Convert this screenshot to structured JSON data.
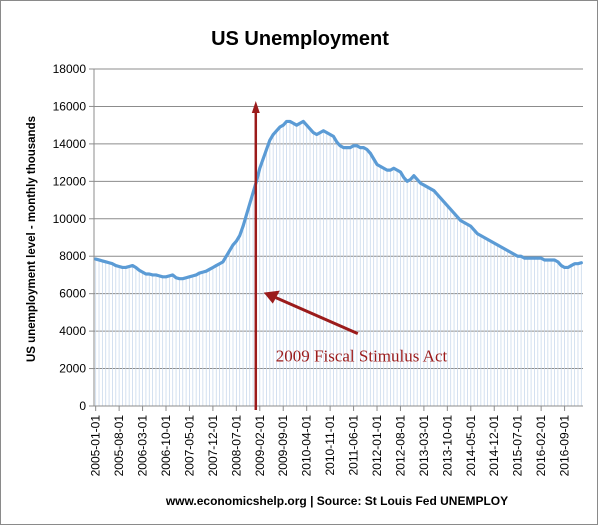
{
  "chart_data": {
    "type": "line",
    "title": "US Unemployment",
    "ylabel": "US unemployment level - monthly thousands",
    "xlabel": "",
    "source": "www.economicshelp.org | Source: St Louis Fed UNEMPLOY",
    "ylim": [
      0,
      18000
    ],
    "yticks": [
      0,
      2000,
      4000,
      6000,
      8000,
      10000,
      12000,
      14000,
      16000,
      18000
    ],
    "grid": true,
    "x_tick_labels": [
      "2005-01-01",
      "2005-08-01",
      "2006-03-01",
      "2006-10-01",
      "2007-05-01",
      "2007-12-01",
      "2008-07-01",
      "2009-02-01",
      "2009-09-01",
      "2010-04-01",
      "2010-11-01",
      "2011-06-01",
      "2012-01-01",
      "2012-08-01",
      "2013-03-01",
      "2013-10-01",
      "2014-05-01",
      "2014-12-01",
      "2015-07-01",
      "2016-02-01",
      "2016-09-01"
    ],
    "series": [
      {
        "name": "",
        "color": "#5b9bd5",
        "start": "2005-01",
        "frequency": "monthly",
        "values": [
          7850,
          7800,
          7750,
          7700,
          7650,
          7600,
          7500,
          7450,
          7400,
          7400,
          7450,
          7500,
          7400,
          7250,
          7150,
          7050,
          7050,
          7000,
          7000,
          6950,
          6900,
          6900,
          6950,
          7000,
          6850,
          6800,
          6800,
          6850,
          6900,
          6950,
          7000,
          7100,
          7150,
          7200,
          7300,
          7400,
          7500,
          7600,
          7700,
          8000,
          8300,
          8600,
          8800,
          9100,
          9600,
          10200,
          10800,
          11400,
          12000,
          12700,
          13200,
          13700,
          14200,
          14500,
          14700,
          14900,
          15000,
          15200,
          15200,
          15100,
          15000,
          15100,
          15200,
          15000,
          14800,
          14600,
          14500,
          14600,
          14700,
          14600,
          14500,
          14400,
          14100,
          13900,
          13800,
          13800,
          13800,
          13900,
          13900,
          13800,
          13800,
          13700,
          13500,
          13200,
          12900,
          12800,
          12700,
          12600,
          12600,
          12700,
          12600,
          12500,
          12200,
          12000,
          12100,
          12300,
          12100,
          11900,
          11800,
          11700,
          11600,
          11500,
          11300,
          11100,
          10900,
          10700,
          10500,
          10300,
          10100,
          9900,
          9800,
          9700,
          9600,
          9400,
          9200,
          9100,
          9000,
          8900,
          8800,
          8700,
          8600,
          8500,
          8400,
          8300,
          8200,
          8100,
          8000,
          8000,
          7900,
          7900,
          7900,
          7900,
          7900,
          7900,
          7800,
          7800,
          7800,
          7800,
          7700,
          7500,
          7400,
          7400,
          7500,
          7600,
          7600,
          7650
        ]
      }
    ],
    "annotation": {
      "text": "2009 Fiscal Stimulus Act",
      "event_date": "2009-02",
      "color": "#9b1b1b"
    }
  }
}
